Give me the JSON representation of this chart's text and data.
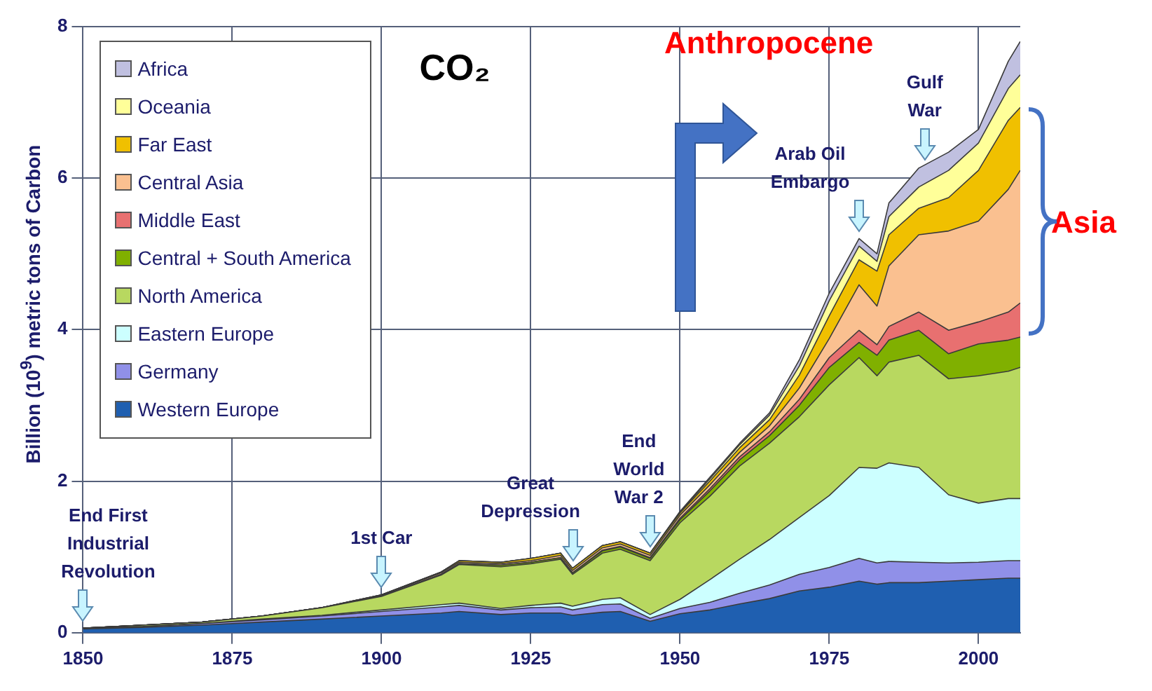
{
  "chart_data": {
    "type": "area",
    "title": "CO₂",
    "ylabel": "Billion (10$^{9}$) metric tons of Carbon",
    "stacked": true,
    "grid": true,
    "legend": "top left",
    "xlim": [
      1850,
      2007
    ],
    "xticks": [
      1850,
      1875,
      1900,
      1925,
      1950,
      1975,
      2000
    ],
    "ylim": [
      0,
      8
    ],
    "yticks": [
      0,
      2,
      4,
      6,
      8
    ],
    "x": [
      1850,
      1860,
      1870,
      1880,
      1890,
      1900,
      1910,
      1913,
      1920,
      1925,
      1930,
      1932,
      1937,
      1940,
      1945,
      1950,
      1955,
      1960,
      1965,
      1970,
      1975,
      1980,
      1983,
      1985,
      1990,
      1995,
      2000,
      2005,
      2007
    ],
    "series": [
      {
        "name": "Western Europe",
        "color": "#1f5fb0",
        "values": [
          0.05,
          0.07,
          0.1,
          0.14,
          0.18,
          0.22,
          0.26,
          0.28,
          0.24,
          0.26,
          0.26,
          0.23,
          0.27,
          0.28,
          0.15,
          0.25,
          0.3,
          0.38,
          0.45,
          0.55,
          0.6,
          0.68,
          0.64,
          0.66,
          0.66,
          0.68,
          0.7,
          0.72,
          0.72
        ]
      },
      {
        "name": "Germany",
        "color": "#9090e8",
        "values": [
          0.01,
          0.01,
          0.02,
          0.03,
          0.04,
          0.06,
          0.08,
          0.08,
          0.06,
          0.07,
          0.08,
          0.07,
          0.1,
          0.1,
          0.04,
          0.07,
          0.1,
          0.14,
          0.18,
          0.22,
          0.26,
          0.3,
          0.28,
          0.28,
          0.27,
          0.24,
          0.23,
          0.23,
          0.23
        ]
      },
      {
        "name": "Eastern Europe",
        "color": "#ccffff",
        "values": [
          0,
          0,
          0,
          0.01,
          0.01,
          0.02,
          0.03,
          0.03,
          0.02,
          0.03,
          0.05,
          0.05,
          0.07,
          0.08,
          0.05,
          0.12,
          0.3,
          0.45,
          0.6,
          0.75,
          0.95,
          1.2,
          1.25,
          1.3,
          1.25,
          0.9,
          0.78,
          0.82,
          0.82
        ]
      },
      {
        "name": "North America",
        "color": "#b8d860",
        "values": [
          0,
          0.02,
          0.02,
          0.04,
          0.1,
          0.18,
          0.39,
          0.51,
          0.55,
          0.55,
          0.58,
          0.42,
          0.61,
          0.64,
          0.71,
          1.01,
          1.1,
          1.23,
          1.27,
          1.33,
          1.46,
          1.45,
          1.22,
          1.33,
          1.48,
          1.53,
          1.68,
          1.68,
          1.73
        ]
      },
      {
        "name": "Central + South America",
        "color": "#80b000",
        "values": [
          0,
          0,
          0,
          0,
          0,
          0,
          0.01,
          0.01,
          0.02,
          0.02,
          0.02,
          0.02,
          0.03,
          0.03,
          0.03,
          0.04,
          0.07,
          0.08,
          0.1,
          0.15,
          0.23,
          0.2,
          0.27,
          0.29,
          0.33,
          0.33,
          0.42,
          0.41,
          0.4
        ]
      },
      {
        "name": "Middle East",
        "color": "#e87070",
        "values": [
          0,
          0,
          0,
          0,
          0,
          0,
          0,
          0,
          0,
          0,
          0,
          0,
          0.01,
          0.01,
          0.01,
          0.02,
          0.03,
          0.04,
          0.05,
          0.08,
          0.13,
          0.16,
          0.14,
          0.18,
          0.24,
          0.31,
          0.29,
          0.37,
          0.45
        ]
      },
      {
        "name": "Central Asia",
        "color": "#fac090",
        "values": [
          0,
          0,
          0,
          0,
          0,
          0.01,
          0.02,
          0.02,
          0.02,
          0.02,
          0.03,
          0.03,
          0.03,
          0.03,
          0.03,
          0.04,
          0.05,
          0.06,
          0.08,
          0.15,
          0.25,
          0.6,
          0.51,
          0.8,
          1.02,
          1.31,
          1.33,
          1.62,
          1.75
        ]
      },
      {
        "name": "Far East",
        "color": "#f0c000",
        "values": [
          0,
          0,
          0,
          0,
          0,
          0.01,
          0.01,
          0.02,
          0.02,
          0.03,
          0.03,
          0.03,
          0.03,
          0.03,
          0.03,
          0.03,
          0.05,
          0.06,
          0.08,
          0.17,
          0.3,
          0.33,
          0.46,
          0.41,
          0.35,
          0.44,
          0.67,
          0.91,
          0.83
        ]
      },
      {
        "name": "Oceania",
        "color": "#ffff99",
        "values": [
          0,
          0,
          0,
          0,
          0,
          0,
          0,
          0,
          0,
          0,
          0,
          0,
          0,
          0,
          0,
          0.01,
          0.03,
          0.04,
          0.06,
          0.12,
          0.2,
          0.18,
          0.13,
          0.24,
          0.28,
          0.36,
          0.36,
          0.42,
          0.43
        ]
      },
      {
        "name": "Africa",
        "color": "#c0c0e0",
        "values": [
          0,
          0,
          0,
          0,
          0,
          0,
          0,
          0,
          0,
          0,
          0,
          0,
          0,
          0,
          0,
          0.01,
          0.02,
          0.02,
          0.03,
          0.08,
          0.1,
          0.1,
          0.1,
          0.18,
          0.25,
          0.24,
          0.18,
          0.36,
          0.44
        ]
      }
    ],
    "annotations": [
      {
        "text": "End First Industrial Revolution",
        "x": 1850,
        "y": 0.06
      },
      {
        "text": "1st Car",
        "x": 1900,
        "y": 0.5
      },
      {
        "text": "Great Depression",
        "x": 1932,
        "y": 0.85
      },
      {
        "text": "End World War 2",
        "x": 1945,
        "y": 1.05
      },
      {
        "text": "Arab Oil Embargo",
        "x": 1980,
        "y": 5.2
      },
      {
        "text": "Gulf War",
        "x": 1991,
        "y": 6.15
      },
      "Anthropocene",
      "Asia"
    ]
  }
}
